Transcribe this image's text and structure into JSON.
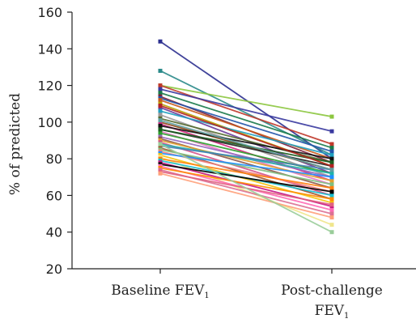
{
  "chart_data": {
    "type": "line",
    "title": "",
    "ylabel": "% of predicted",
    "xlabel": "",
    "ylim": [
      20,
      160
    ],
    "yticks": [
      20,
      40,
      60,
      80,
      100,
      120,
      140,
      160
    ],
    "grid": false,
    "legend": "none",
    "categories": [
      {
        "main": "Baseline FEV",
        "sub": "1",
        "line2": "",
        "line2_sub": ""
      },
      {
        "main": "Post-challenge",
        "sub": "",
        "line2": "FEV",
        "line2_sub": "1"
      }
    ],
    "series": [
      {
        "values": [
          144,
          80
        ],
        "color": "#2b2f8f"
      },
      {
        "values": [
          128,
          82
        ],
        "color": "#2a8a8a"
      },
      {
        "values": [
          120,
          103
        ],
        "color": "#8cc63f"
      },
      {
        "values": [
          120,
          88
        ],
        "color": "#c0392b"
      },
      {
        "values": [
          118,
          95
        ],
        "color": "#3a3aa0"
      },
      {
        "values": [
          116,
          86
        ],
        "color": "#1a7a4a"
      },
      {
        "values": [
          114,
          78
        ],
        "color": "#7b1e3a"
      },
      {
        "values": [
          113,
          84
        ],
        "color": "#2255aa"
      },
      {
        "values": [
          112,
          80
        ],
        "color": "#c85a1a"
      },
      {
        "values": [
          110,
          76
        ],
        "color": "#b8a000"
      },
      {
        "values": [
          108,
          72
        ],
        "color": "#6a3d9a"
      },
      {
        "values": [
          106,
          82
        ],
        "color": "#1f9fbf"
      },
      {
        "values": [
          104,
          70
        ],
        "color": "#9a9a9a"
      },
      {
        "values": [
          102,
          78
        ],
        "color": "#556b2f"
      },
      {
        "values": [
          100,
          74
        ],
        "color": "#8b4513"
      },
      {
        "values": [
          99,
          68
        ],
        "color": "#d62780"
      },
      {
        "values": [
          98,
          80
        ],
        "color": "#111111"
      },
      {
        "values": [
          96,
          76
        ],
        "color": "#222222"
      },
      {
        "values": [
          95,
          66
        ],
        "color": "#e377c2"
      },
      {
        "values": [
          94,
          72
        ],
        "color": "#2ca02c"
      },
      {
        "values": [
          92,
          70
        ],
        "color": "#9467bd"
      },
      {
        "values": [
          91,
          64
        ],
        "color": "#8c564b"
      },
      {
        "values": [
          90,
          68
        ],
        "color": "#e0a030"
      },
      {
        "values": [
          89,
          60
        ],
        "color": "#d45087"
      },
      {
        "values": [
          88,
          72
        ],
        "color": "#20b2aa"
      },
      {
        "values": [
          87,
          74
        ],
        "color": "#4682b4"
      },
      {
        "values": [
          86,
          58
        ],
        "color": "#a0522d"
      },
      {
        "values": [
          85,
          66
        ],
        "color": "#7fbf7f"
      },
      {
        "values": [
          84,
          62
        ],
        "color": "#f08080"
      },
      {
        "values": [
          83,
          70
        ],
        "color": "#1e90ff"
      },
      {
        "values": [
          82,
          56
        ],
        "color": "#f4c20d"
      },
      {
        "values": [
          81,
          44
        ],
        "color": "#f0e68c"
      },
      {
        "values": [
          80,
          64
        ],
        "color": "#ff7f0e"
      },
      {
        "values": [
          79,
          60
        ],
        "color": "#17becf"
      },
      {
        "values": [
          78,
          54
        ],
        "color": "#c71585"
      },
      {
        "values": [
          77,
          62
        ],
        "color": "#000000"
      },
      {
        "values": [
          76,
          52
        ],
        "color": "#ff69b4"
      },
      {
        "values": [
          75,
          58
        ],
        "color": "#ff8c00"
      },
      {
        "values": [
          74,
          50
        ],
        "color": "#db7093"
      },
      {
        "values": [
          73,
          55
        ],
        "color": "#e06080"
      },
      {
        "values": [
          72,
          48
        ],
        "color": "#ffa07a"
      },
      {
        "values": [
          88,
          40
        ],
        "color": "#9acd9a"
      },
      {
        "values": [
          96,
          78
        ],
        "color": "#1b5e20"
      },
      {
        "values": [
          109,
          76
        ],
        "color": "#b22222"
      },
      {
        "values": [
          101,
          74
        ],
        "color": "#5f9ea0"
      }
    ]
  }
}
